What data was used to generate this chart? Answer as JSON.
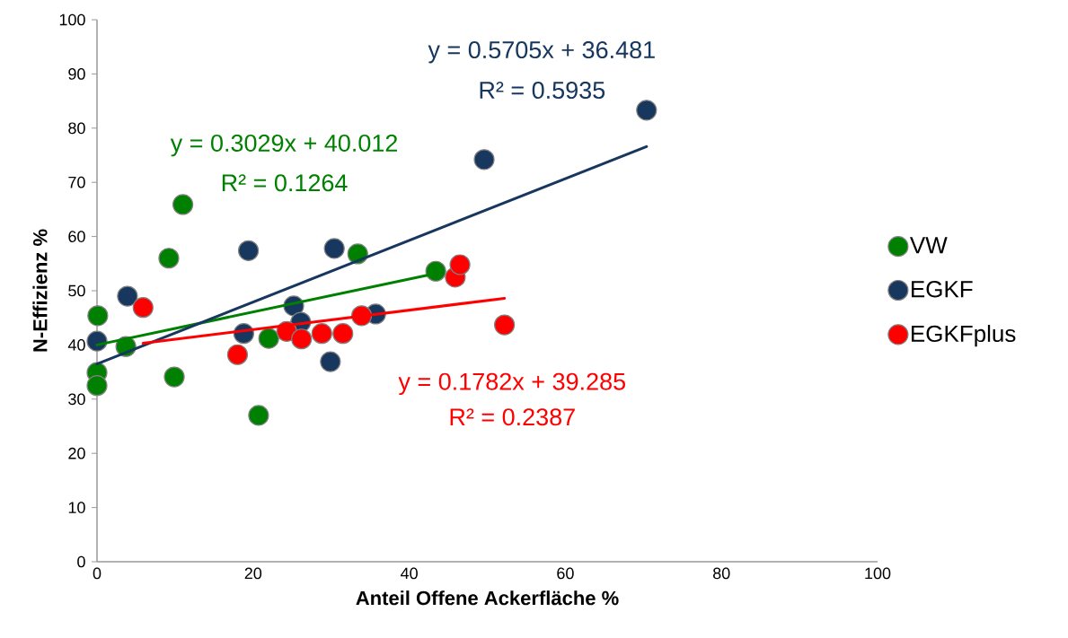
{
  "chart_data": {
    "type": "scatter",
    "xlabel": "Anteil Offene Ackerfläche %",
    "ylabel": "N-Effizienz %",
    "xlim": [
      0,
      100
    ],
    "ylim": [
      0,
      100
    ],
    "xticks": [
      0,
      20,
      40,
      60,
      80,
      100
    ],
    "yticks": [
      0,
      10,
      20,
      30,
      40,
      50,
      60,
      70,
      80,
      90,
      100
    ],
    "grid": false,
    "legend": "right",
    "series": [
      {
        "name": "VW",
        "marker": "circle",
        "color": "#008000",
        "x": [
          0.1,
          0,
          0,
          3.7,
          9.2,
          11.0,
          9.9,
          20.7,
          22.0,
          33.4,
          43.4
        ],
        "values": [
          45.4,
          34.9,
          32.5,
          39.7,
          56.0,
          65.9,
          34.1,
          27.0,
          41.2,
          56.8,
          53.6
        ]
      },
      {
        "name": "EGKF",
        "marker": "circle",
        "color": "#17375e",
        "x": [
          0,
          3.9,
          18.8,
          19.4,
          25.2,
          26.1,
          29.9,
          30.4,
          35.7,
          49.6,
          70.4
        ],
        "values": [
          40.7,
          49.0,
          42.1,
          57.4,
          47.2,
          44.2,
          36.9,
          57.8,
          45.7,
          74.2,
          83.3
        ]
      },
      {
        "name": "EGKFplus",
        "marker": "circle",
        "color": "#ff0000",
        "x": [
          5.9,
          18.0,
          24.3,
          26.2,
          28.8,
          31.5,
          33.9,
          45.9,
          46.5,
          52.2
        ],
        "values": [
          46.9,
          38.2,
          42.5,
          41.1,
          42.1,
          42.1,
          45.4,
          52.5,
          54.8,
          43.7
        ]
      },
      {
        "type": "line",
        "marker": "none",
        "color": "#008000",
        "x": [
          0,
          43.4
        ],
        "values": [
          40.0,
          53.2
        ]
      },
      {
        "type": "line",
        "marker": "none",
        "color": "#17375e",
        "x": [
          0,
          70.4
        ],
        "values": [
          36.5,
          76.6
        ]
      },
      {
        "type": "line",
        "marker": "none",
        "color": "#ff0000",
        "x": [
          5.9,
          52.2
        ],
        "values": [
          40.3,
          48.6
        ]
      }
    ],
    "annotations": [
      "y = 0.5705x + 36.481",
      "R² = 0.5935",
      "y = 0.3029x + 40.012",
      "R² = 0.1264",
      "y = 0.1782x + 39.285",
      "R² = 0.2387"
    ]
  }
}
